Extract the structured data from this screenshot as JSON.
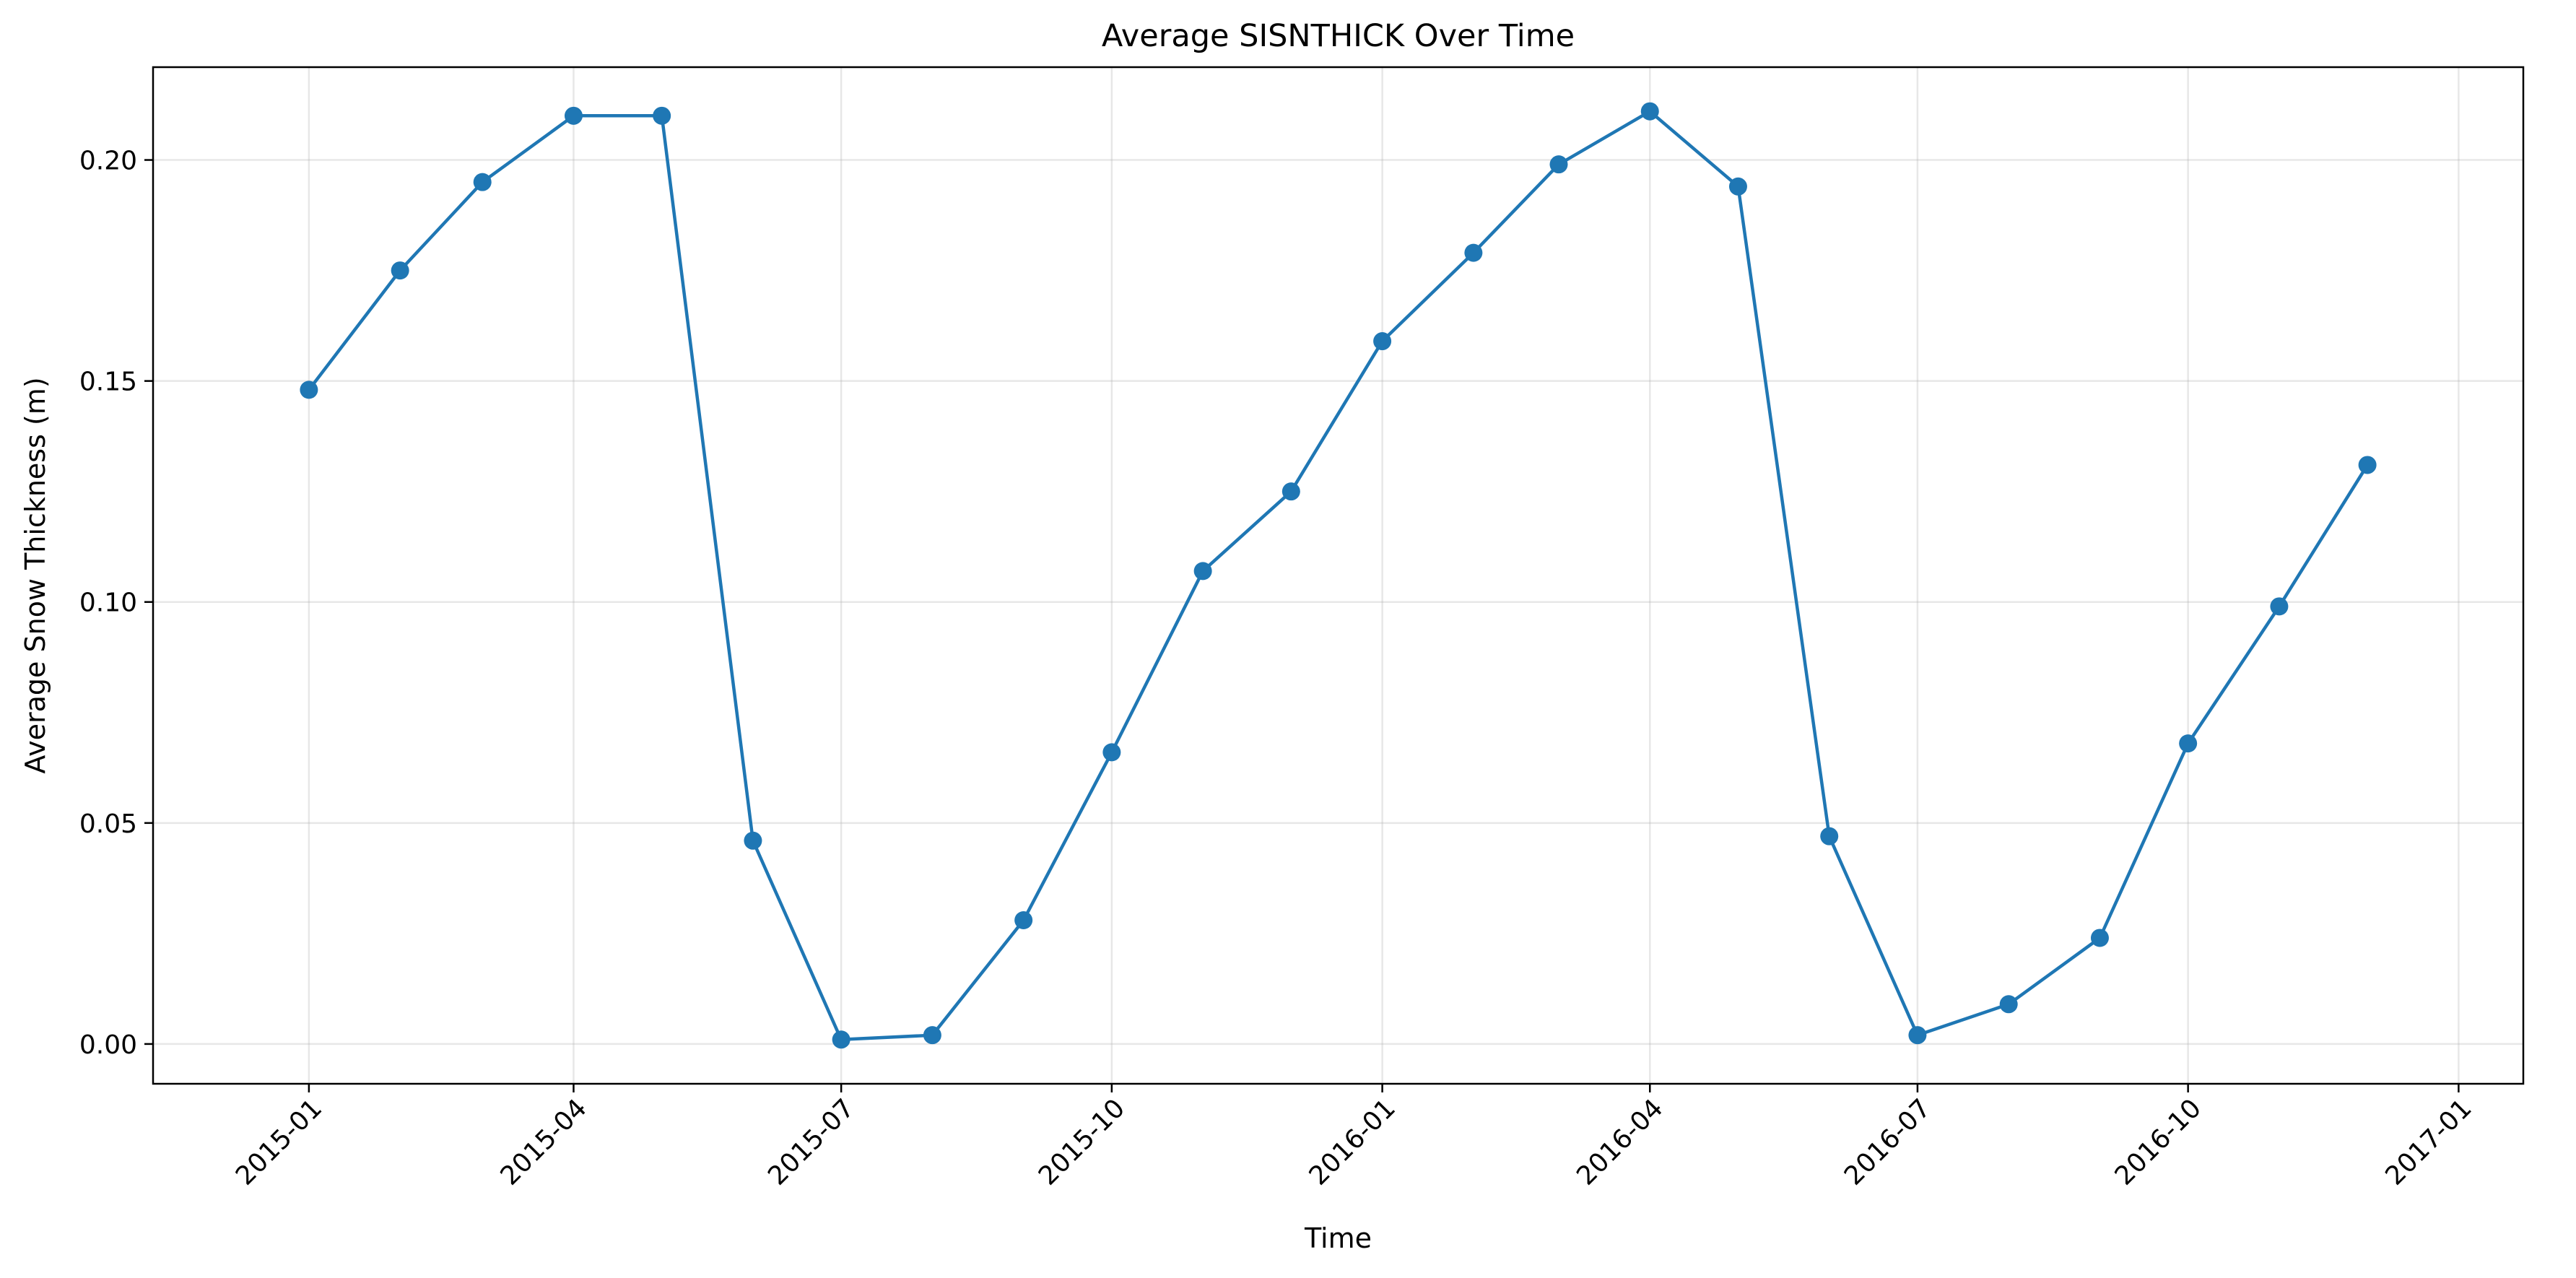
{
  "chart_data": {
    "type": "line",
    "title": "Average SISNTHICK Over Time",
    "xlabel": "Time",
    "ylabel": "Average Snow Thickness (m)",
    "x": [
      "2015-01",
      "2015-02",
      "2015-03",
      "2015-04",
      "2015-05",
      "2015-06",
      "2015-07",
      "2015-08",
      "2015-09",
      "2015-10",
      "2015-11",
      "2015-12",
      "2016-01",
      "2016-02",
      "2016-03",
      "2016-04",
      "2016-05",
      "2016-06",
      "2016-07",
      "2016-08",
      "2016-09",
      "2016-10",
      "2016-11",
      "2016-12"
    ],
    "series": [
      {
        "name": "",
        "color": "#1f77b4",
        "values": [
          0.148,
          0.175,
          0.195,
          0.21,
          0.21,
          0.046,
          0.001,
          0.002,
          0.028,
          0.066,
          0.107,
          0.125,
          0.159,
          0.179,
          0.199,
          0.211,
          0.194,
          0.047,
          0.002,
          0.009,
          0.024,
          0.068,
          0.099,
          0.131
        ]
      }
    ],
    "xlim": [
      "2014-11-09",
      "2017-01-23"
    ],
    "ylim": [
      -0.009,
      0.221
    ],
    "xticks": [
      "2015-01",
      "2015-04",
      "2015-07",
      "2015-10",
      "2016-01",
      "2016-04",
      "2016-07",
      "2016-10",
      "2017-01"
    ],
    "yticks": [
      0.0,
      0.05,
      0.1,
      0.15,
      0.2
    ],
    "ytick_labels": [
      "0.00",
      "0.05",
      "0.10",
      "0.15",
      "0.20"
    ],
    "grid": true,
    "legend": "none"
  }
}
